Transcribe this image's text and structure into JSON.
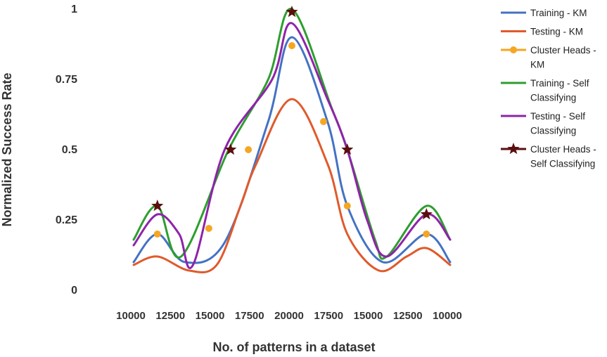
{
  "chart_data": {
    "type": "line",
    "title": "",
    "xlabel": "No. of patterns in a dataset",
    "ylabel": "Normalized Success Rate",
    "ylim": [
      0,
      1
    ],
    "y_ticks": [
      "0",
      "0.25",
      "0.5",
      "0.75",
      "1"
    ],
    "x_ticks": [
      "10000",
      "12500",
      "15000",
      "17500",
      "20000",
      "17500",
      "15000",
      "12500",
      "10000"
    ],
    "grid": false,
    "legend_position": "right",
    "series": [
      {
        "name": "Training - KM",
        "color": "#4472c4",
        "style": "line",
        "points": [
          [
            0,
            0.1
          ],
          [
            0.6,
            0.2
          ],
          [
            1.3,
            0.1
          ],
          [
            2.3,
            0.17
          ],
          [
            3.4,
            0.6
          ],
          [
            4,
            0.9
          ],
          [
            4.9,
            0.6
          ],
          [
            5.4,
            0.3
          ],
          [
            6.3,
            0.1
          ],
          [
            7.4,
            0.2
          ],
          [
            8,
            0.1
          ]
        ]
      },
      {
        "name": "Testing - KM",
        "color": "#e05a2b",
        "style": "line",
        "points": [
          [
            0,
            0.09
          ],
          [
            0.6,
            0.12
          ],
          [
            1.4,
            0.07
          ],
          [
            2.1,
            0.09
          ],
          [
            2.7,
            0.3
          ],
          [
            3.1,
            0.45
          ],
          [
            4,
            0.68
          ],
          [
            4.9,
            0.45
          ],
          [
            5.4,
            0.2
          ],
          [
            6.2,
            0.07
          ],
          [
            6.9,
            0.12
          ],
          [
            7.4,
            0.15
          ],
          [
            8,
            0.09
          ]
        ]
      },
      {
        "name": "Cluster Heads - KM",
        "color": "#f5a623",
        "style": "marker",
        "marker": "circle",
        "points": [
          [
            0.6,
            0.2
          ],
          [
            1.9,
            0.22
          ],
          [
            2.9,
            0.5
          ],
          [
            4,
            0.87
          ],
          [
            4.8,
            0.6
          ],
          [
            5.4,
            0.3
          ],
          [
            7.4,
            0.2
          ]
        ]
      },
      {
        "name": "Training - Self Classifying",
        "color": "#2e9e2e",
        "style": "line",
        "points": [
          [
            0,
            0.18
          ],
          [
            0.6,
            0.3
          ],
          [
            1.2,
            0.12
          ],
          [
            2.4,
            0.5
          ],
          [
            3.4,
            0.75
          ],
          [
            4,
            1.0
          ],
          [
            5,
            0.65
          ],
          [
            5.4,
            0.5
          ],
          [
            6.1,
            0.18
          ],
          [
            6.4,
            0.12
          ],
          [
            7.4,
            0.3
          ],
          [
            8,
            0.18
          ]
        ]
      },
      {
        "name": "Testing - Self Classifying",
        "color": "#8e24aa",
        "style": "line",
        "points": [
          [
            0,
            0.16
          ],
          [
            0.6,
            0.27
          ],
          [
            1.15,
            0.2
          ],
          [
            1.5,
            0.09
          ],
          [
            2.3,
            0.5
          ],
          [
            3.5,
            0.75
          ],
          [
            4,
            0.95
          ],
          [
            4.9,
            0.68
          ],
          [
            5.4,
            0.5
          ],
          [
            5.9,
            0.25
          ],
          [
            6.4,
            0.12
          ],
          [
            7.4,
            0.27
          ],
          [
            8,
            0.18
          ]
        ]
      },
      {
        "name": "Cluster Heads - Self Classifying",
        "color": "#5a0f0f",
        "style": "marker",
        "marker": "star",
        "points": [
          [
            0.6,
            0.3
          ],
          [
            2.45,
            0.5
          ],
          [
            4,
            0.99
          ],
          [
            5.4,
            0.5
          ],
          [
            7.4,
            0.27
          ]
        ]
      }
    ],
    "legend": [
      {
        "lines": [
          "Training - KM"
        ]
      },
      {
        "lines": [
          "Testing - KM"
        ]
      },
      {
        "lines": [
          "Cluster Heads -",
          "KM"
        ]
      },
      {
        "lines": [
          "Training - Self",
          "Classifying"
        ]
      },
      {
        "lines": [
          "Testing - Self",
          "Classifying"
        ]
      },
      {
        "lines": [
          "Cluster Heads -",
          "Self Classifying"
        ]
      }
    ]
  }
}
